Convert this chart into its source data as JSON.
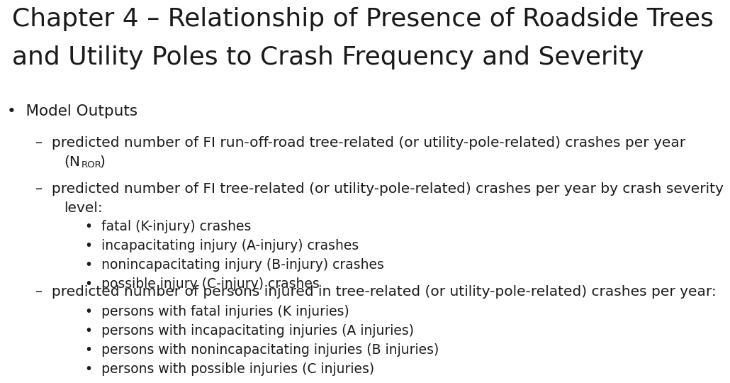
{
  "title_line1": "Chapter 4 – Relationship of Presence of Roadside Trees",
  "title_line2": "and Utility Poles to Crash Frequency and Severity",
  "background_color": "#ffffff",
  "text_color": "#1a1a1a",
  "title_fontsize": 26,
  "body_fontsize": 14.5,
  "sub_fontsize": 13.5,
  "bullet1": "Model Outputs",
  "dash1_line1": "predicted number of FI run-off-road tree-related (or utility-pole-related) crashes per year",
  "dash1_line2_pre": "(N",
  "dash1_line2_sub": "ROR",
  "dash1_line2_post": ")",
  "dash2_line1": "predicted number of FI tree-related (or utility-pole-related) crashes per year by crash severity",
  "dash2_line2": "level:",
  "sub_bullets_1": [
    "fatal (K-injury) crashes",
    "incapacitating injury (A-injury) crashes",
    "nonincapacitating injury (B-injury) crashes",
    "possible injury (C-injury) crashes"
  ],
  "dash3": "predicted number of persons injured in tree-related (or utility-pole-related) crashes per year:",
  "sub_bullets_2": [
    "persons with fatal injuries (K injuries)",
    "persons with incapacitating injuries (A injuries)",
    "persons with nonincapacitating injuries (B injuries)",
    "persons with possible injuries (C injuries)"
  ]
}
